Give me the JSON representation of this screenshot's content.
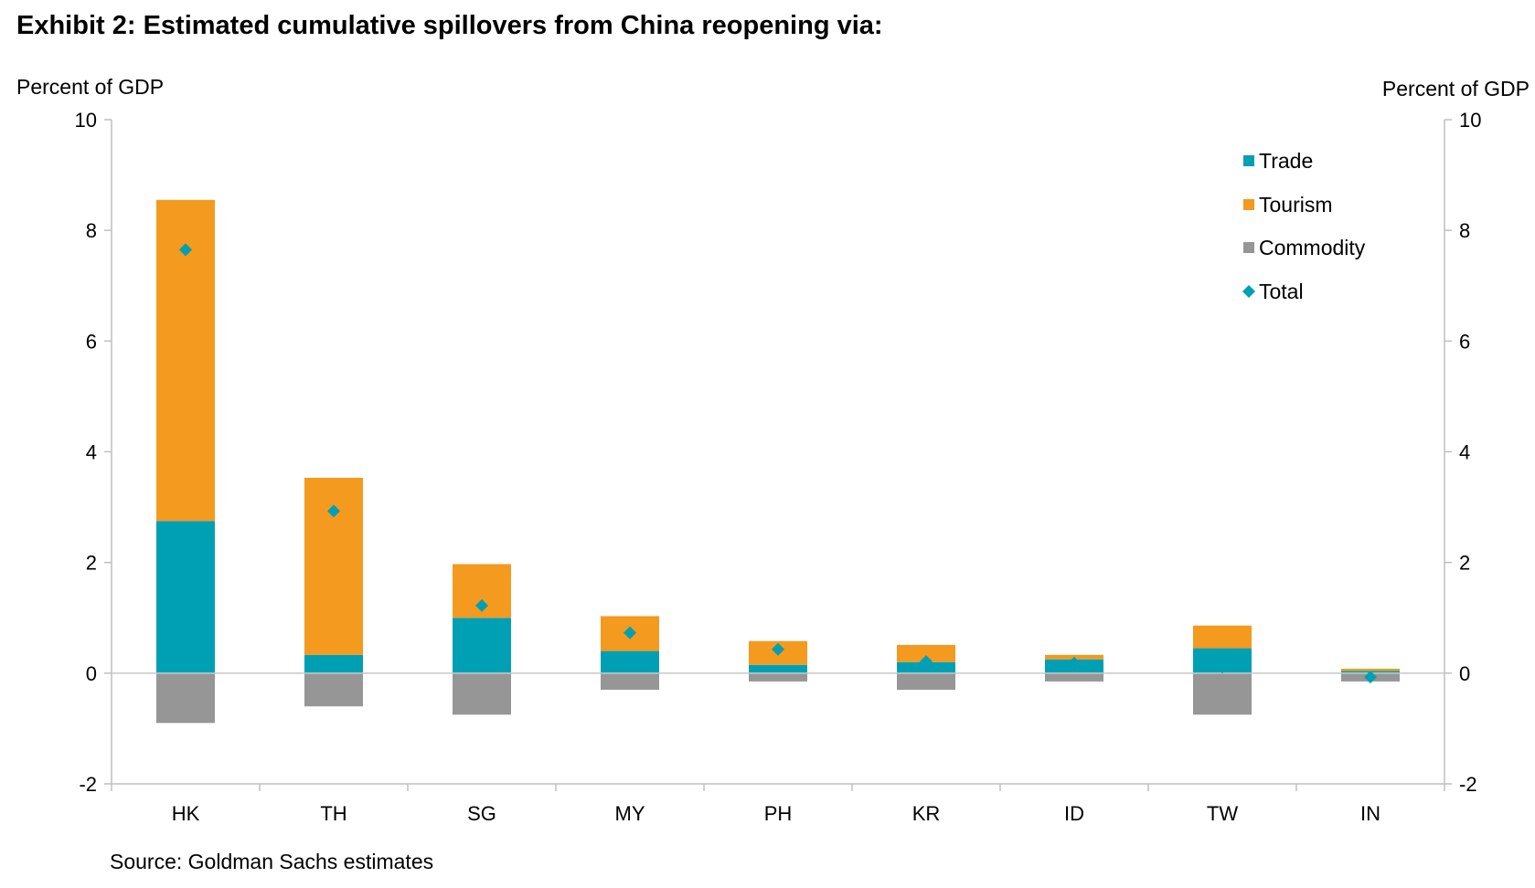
{
  "title": "Exhibit 2: Estimated cumulative spillovers from China reopening via:",
  "left_axis_label": "Percent of GDP",
  "right_axis_label": "Percent of GDP",
  "source": "Source: Goldman Sachs estimates",
  "colors": {
    "trade": "#00A0B4",
    "tourism": "#F39A1F",
    "commodity": "#969696",
    "total": "#00A0B4",
    "axis": "#bfbfbf"
  },
  "chart_data": {
    "type": "bar",
    "stacked": true,
    "categories": [
      "HK",
      "TH",
      "SG",
      "MY",
      "PH",
      "KR",
      "ID",
      "TW",
      "IN"
    ],
    "series": [
      {
        "name": "Trade",
        "kind": "bar",
        "values": [
          2.75,
          0.33,
          1.0,
          0.4,
          0.15,
          0.2,
          0.25,
          0.45,
          0.04
        ]
      },
      {
        "name": "Tourism",
        "kind": "bar",
        "values": [
          5.8,
          3.2,
          0.97,
          0.63,
          0.43,
          0.31,
          0.08,
          0.41,
          0.04
        ]
      },
      {
        "name": "Commodity",
        "kind": "bar",
        "values": [
          -0.9,
          -0.6,
          -0.75,
          -0.3,
          -0.15,
          -0.3,
          -0.15,
          -0.75,
          -0.15
        ]
      },
      {
        "name": "Total",
        "kind": "marker",
        "values": [
          7.65,
          2.93,
          1.22,
          0.73,
          0.43,
          0.21,
          0.18,
          0.11,
          -0.07
        ]
      }
    ],
    "ylim": [
      -2,
      10
    ],
    "yticks": [
      "-2",
      "0",
      "2",
      "4",
      "6",
      "8",
      "10"
    ],
    "legend_position": "top-right",
    "grid": false
  }
}
